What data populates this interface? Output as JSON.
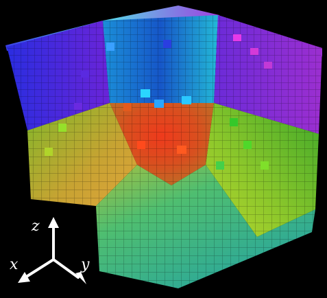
{
  "image": {
    "description_free": true,
    "background_color": "#000000"
  },
  "axes": {
    "x_label": "x",
    "y_label": "y",
    "z_label": "z",
    "color": "#ffffff"
  },
  "faces": {
    "top_left_back": "#3a1fd6",
    "top_center_back": "#2a9fe0",
    "top_right_back": "#8a2be2",
    "bottom_left_wall": "#a6d12b",
    "bottom_right_wall": "#5fcf2a",
    "corner_inner": "#e33a1b",
    "floor_near": "#2bbf96",
    "floor_left": "#d8a030"
  }
}
